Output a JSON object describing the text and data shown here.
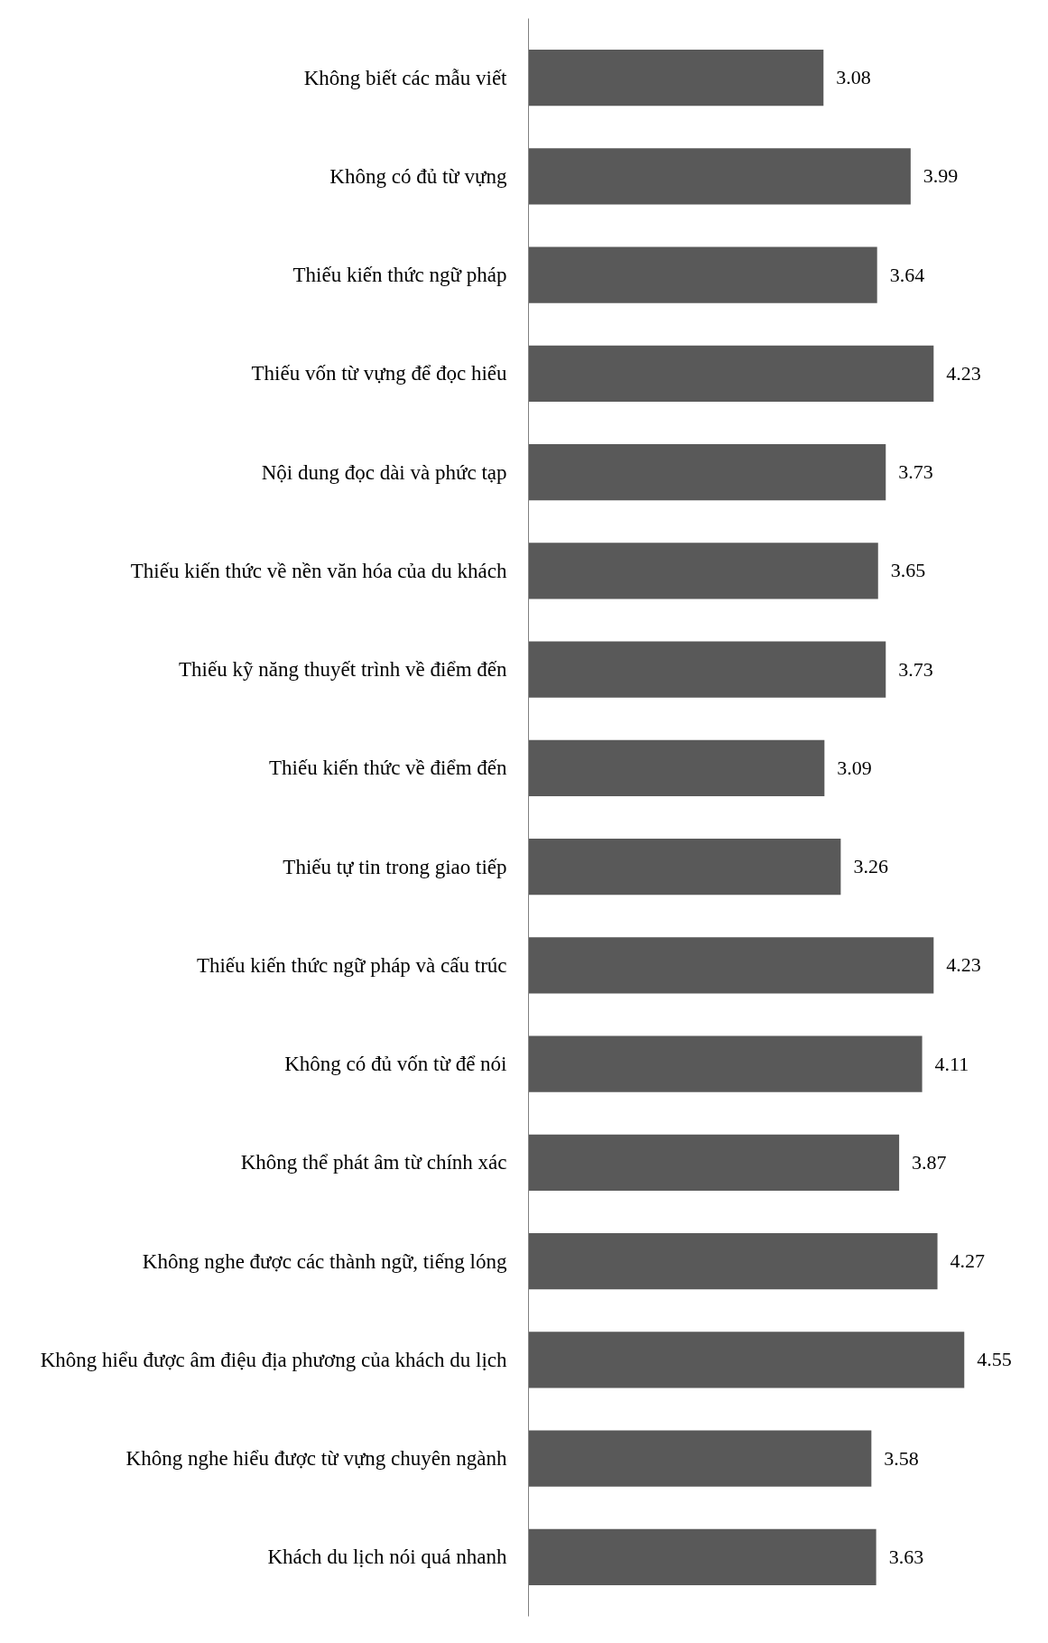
{
  "chart_data": {
    "type": "bar",
    "orientation": "horizontal",
    "categories": [
      "Không biết các mẫu viết",
      "Không có đủ từ vựng",
      "Thiếu kiến thức ngữ pháp",
      "Thiếu vốn từ vựng để đọc hiểu",
      "Nội dung đọc dài và phức tạp",
      "Thiếu kiến thức về nền văn hóa của du khách",
      "Thiếu kỹ năng thuyết trình về điểm đến",
      "Thiếu kiến thức về điểm đến",
      "Thiếu tự tin trong giao tiếp",
      "Thiếu kiến thức ngữ pháp và cấu trúc",
      "Không có đủ vốn từ để nói",
      "Không thể phát âm từ chính xác",
      "Không nghe được các thành ngữ, tiếng lóng",
      "Không hiểu được âm điệu địa phương của khách du lịch",
      "Không nghe hiểu được từ vựng chuyên ngành",
      "Khách du lịch nói quá nhanh"
    ],
    "values": [
      3.08,
      3.99,
      3.64,
      4.23,
      3.73,
      3.65,
      3.73,
      3.09,
      3.26,
      4.23,
      4.11,
      3.87,
      4.27,
      4.55,
      3.58,
      3.63
    ],
    "color": "#595959",
    "data_labels": true,
    "tick_labels": "y",
    "grid": false
  }
}
